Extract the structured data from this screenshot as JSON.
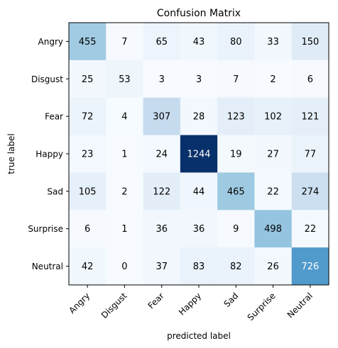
{
  "chart_data": {
    "type": "heatmap",
    "title": "Confusion Matrix",
    "xlabel": "predicted label",
    "ylabel": "true label",
    "x_categories": [
      "Angry",
      "Disgust",
      "Fear",
      "Happy",
      "Sad",
      "Surprise",
      "Neutral"
    ],
    "y_categories": [
      "Angry",
      "Disgust",
      "Fear",
      "Happy",
      "Sad",
      "Surprise",
      "Neutral"
    ],
    "matrix": [
      [
        455,
        7,
        65,
        43,
        80,
        33,
        150
      ],
      [
        25,
        53,
        3,
        3,
        7,
        2,
        6
      ],
      [
        72,
        4,
        307,
        28,
        123,
        102,
        121
      ],
      [
        23,
        1,
        24,
        1244,
        19,
        27,
        77
      ],
      [
        105,
        2,
        122,
        44,
        465,
        22,
        274
      ],
      [
        6,
        1,
        36,
        36,
        9,
        498,
        22
      ],
      [
        42,
        0,
        37,
        83,
        82,
        26,
        726
      ]
    ],
    "colormap": "Blues",
    "value_range": [
      0,
      1244
    ]
  }
}
